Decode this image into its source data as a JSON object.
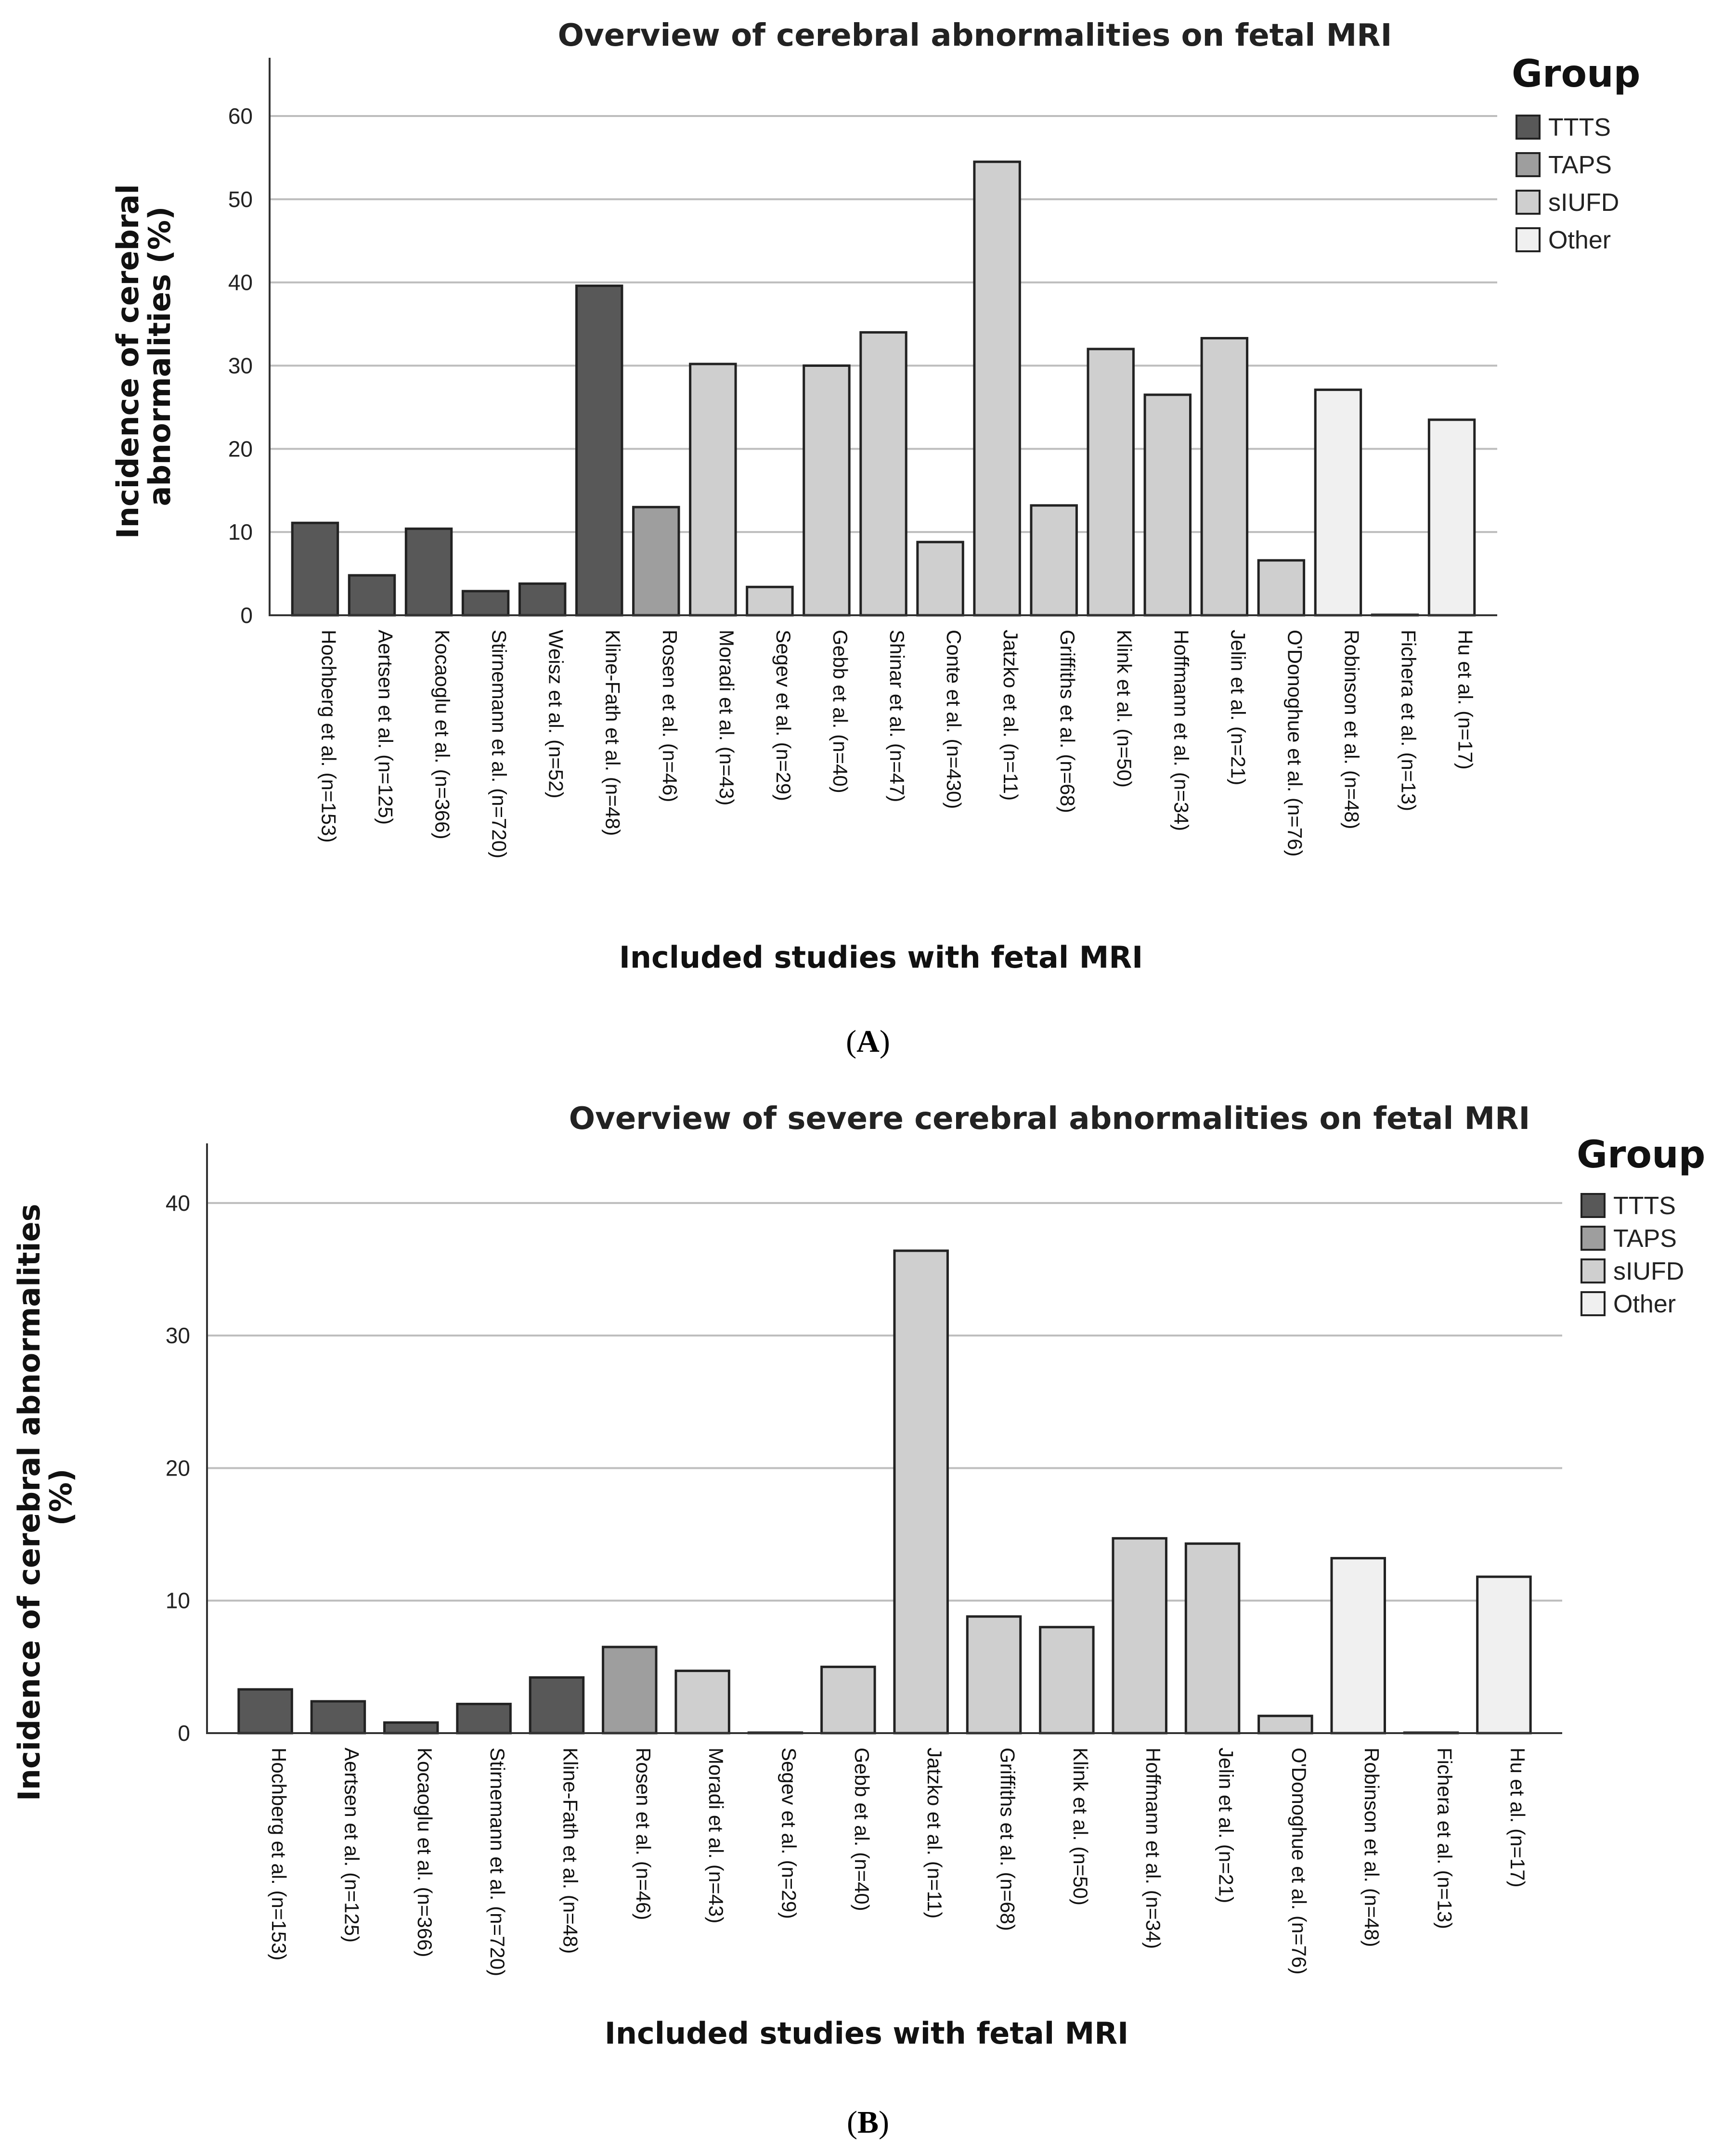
{
  "figure": {
    "panel_a_label": "A",
    "panel_b_label": "B"
  },
  "colors": {
    "TTTS": "#585858",
    "TAPS": "#9e9e9e",
    "sIUFD": "#cfcfcf",
    "Other": "#f0f0f0"
  },
  "chart_data": [
    {
      "type": "bar",
      "title": "Overview of cerebral abnormalities on fetal MRI",
      "xlabel": "Included studies with fetal MRI",
      "ylabel_lines": [
        "Incidence of cerebral",
        "abnormalities (%)"
      ],
      "ylim": [
        0,
        67
      ],
      "yticks": [
        0,
        10,
        20,
        30,
        40,
        50,
        60
      ],
      "legend": {
        "title": "Group",
        "entries": [
          "TTTS",
          "TAPS",
          "sIUFD",
          "Other"
        ],
        "position": "top-right"
      },
      "categories": [
        "Hochberg et al. (n=153)",
        "Aertsen et al. (n=125)",
        "Kocaoglu et al. (n=366)",
        "Stirnemann et al. (n=720)",
        "Weisz et al. (n=52)",
        "Kline-Fath et al. (n=48)",
        "Rosen et al. (n=46)",
        "Moradi et al. (n=43)",
        "Segev et al. (n=29)",
        "Gebb et al. (n=40)",
        "Shinar et al. (n=47)",
        "Conte et al. (n=430)",
        "Jatzko et al. (n=11)",
        "Griffiths et al. (n=68)",
        "Klink et al. (n=50)",
        "Hoffmann et al. (n=34)",
        "Jelin et al. (n=21)",
        "O'Donoghue et al. (n=76)",
        "Robinson et al. (n=48)",
        "Fichera et al. (n=13)",
        "Hu et al. (n=17)"
      ],
      "values": [
        11.1,
        4.8,
        10.4,
        2.9,
        3.8,
        39.6,
        13.0,
        30.2,
        3.4,
        30.0,
        34.0,
        8.8,
        54.5,
        13.2,
        32.0,
        26.5,
        33.3,
        6.6,
        27.1,
        0,
        23.5
      ],
      "groups": [
        "TTTS",
        "TTTS",
        "TTTS",
        "TTTS",
        "TTTS",
        "TTTS",
        "TAPS",
        "sIUFD",
        "sIUFD",
        "sIUFD",
        "sIUFD",
        "sIUFD",
        "sIUFD",
        "sIUFD",
        "sIUFD",
        "sIUFD",
        "sIUFD",
        "sIUFD",
        "Other",
        "Other",
        "Other"
      ]
    },
    {
      "type": "bar",
      "title": "Overview of severe cerebral abnormalities on fetal MRI",
      "xlabel": "Included studies with fetal MRI",
      "ylabel_lines": [
        "Incidence of cerebral abnormalities",
        "(%)"
      ],
      "ylim": [
        0,
        44.5
      ],
      "yticks": [
        0,
        10,
        20,
        30,
        40
      ],
      "legend": {
        "title": "Group",
        "entries": [
          "TTTS",
          "TAPS",
          "sIUFD",
          "Other"
        ],
        "position": "top-right"
      },
      "categories": [
        "Hochberg et al. (n=153)",
        "Aertsen et al. (n=125)",
        "Kocaoglu et al. (n=366)",
        "Stirnemann et al. (n=720)",
        "Kline-Fath et al. (n=48)",
        "Rosen et al. (n=46)",
        "Moradi et al. (n=43)",
        "Segev et al. (n=29)",
        "Gebb et al. (n=40)",
        "Jatzko et al. (n=11)",
        "Griffiths et al. (n=68)",
        "Klink et al. (n=50)",
        "Hoffmann et al. (n=34)",
        "Jelin et al. (n=21)",
        "O'Donoghue et al. (n=76)",
        "Robinson et al. (n=48)",
        "Fichera et al. (n=13)",
        "Hu et al. (n=17)"
      ],
      "values": [
        3.3,
        2.4,
        0.8,
        2.2,
        4.2,
        6.5,
        4.7,
        0,
        5.0,
        36.4,
        8.8,
        8.0,
        14.7,
        14.3,
        1.3,
        13.2,
        0,
        11.8
      ],
      "groups": [
        "TTTS",
        "TTTS",
        "TTTS",
        "TTTS",
        "TTTS",
        "TAPS",
        "sIUFD",
        "sIUFD",
        "sIUFD",
        "sIUFD",
        "sIUFD",
        "sIUFD",
        "sIUFD",
        "sIUFD",
        "sIUFD",
        "Other",
        "Other",
        "Other"
      ]
    }
  ]
}
